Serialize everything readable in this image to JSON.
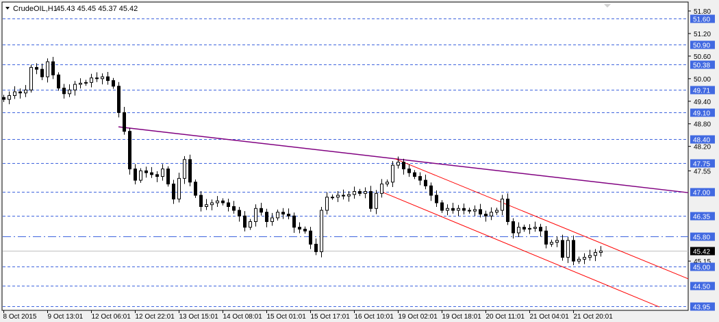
{
  "header": {
    "symbol": "CrudeOIL,H1",
    "ohlc_readout": "45.43 45.45 45.37 45.42"
  },
  "colors": {
    "background": "#ffffff",
    "level_line": "#3d63dd",
    "level_label_bg": "#4169e1",
    "trendline": "#800080",
    "channel": "#ff0000",
    "current_price_line": "#c0c0c0",
    "current_price_label_bg": "#000000"
  },
  "chart_data": {
    "type": "candlestick",
    "title": "CrudeOIL,H1",
    "ylim": [
      43.85,
      51.95
    ],
    "grid": false,
    "y_tick_labels": [
      "51.80",
      "51.20",
      "50.60",
      "50.00",
      "49.40",
      "48.80",
      "48.20",
      "47.55",
      "45.15"
    ],
    "x_tick_labels": [
      "8 Oct 2015",
      "9 Oct 13:01",
      "12 Oct 06:01",
      "12 Oct 22:01",
      "13 Oct 15:01",
      "14 Oct 08:01",
      "15 Oct 01:01",
      "15 Oct 17:01",
      "16 Oct 10:01",
      "19 Oct 02:01",
      "19 Oct 18:01",
      "20 Oct 11:01",
      "21 Oct 04:01",
      "21 Oct 20:01"
    ],
    "closes": [
      49.45,
      49.55,
      49.65,
      49.62,
      49.7,
      50.3,
      50.25,
      50.05,
      50.45,
      50.1,
      49.75,
      49.6,
      49.7,
      49.85,
      49.88,
      49.9,
      50.02,
      50.0,
      50.05,
      49.95,
      49.8,
      49.1,
      48.6,
      47.6,
      47.3,
      47.55,
      47.5,
      47.45,
      47.4,
      47.6,
      47.2,
      46.8,
      47.35,
      47.85,
      47.25,
      46.9,
      46.6,
      46.65,
      46.7,
      46.75,
      46.7,
      46.6,
      46.5,
      46.35,
      46.05,
      46.2,
      46.55,
      46.45,
      46.2,
      46.3,
      46.45,
      46.4,
      46.35,
      46.05,
      46.0,
      45.95,
      45.6,
      45.4,
      46.5,
      46.85,
      46.85,
      46.9,
      46.88,
      46.92,
      47.0,
      46.95,
      47.0,
      46.55,
      46.95,
      47.2,
      47.25,
      47.7,
      47.78,
      47.6,
      47.5,
      47.4,
      47.3,
      47.15,
      46.9,
      46.7,
      46.5,
      46.55,
      46.5,
      46.55,
      46.5,
      46.48,
      46.52,
      46.4,
      46.35,
      46.45,
      46.5,
      46.8,
      46.2,
      45.9,
      46.05,
      46.0,
      46.02,
      46.05,
      45.95,
      45.6,
      45.65,
      45.7,
      45.25,
      45.7,
      45.15,
      45.2,
      45.25,
      45.3,
      45.38,
      45.42
    ],
    "horizontal_levels": [
      {
        "price": "51.60",
        "style": "dashed"
      },
      {
        "price": "50.90",
        "style": "dashed"
      },
      {
        "price": "50.38",
        "style": "dashed"
      },
      {
        "price": "49.71",
        "style": "dashed"
      },
      {
        "price": "49.10",
        "style": "dashed"
      },
      {
        "price": "48.40",
        "style": "dashed"
      },
      {
        "price": "47.75",
        "style": "dashed"
      },
      {
        "price": "47.00",
        "style": "dashed"
      },
      {
        "price": "46.35",
        "style": "dashed"
      },
      {
        "price": "45.80",
        "style": "dash-dot"
      },
      {
        "price": "45.00",
        "style": "dashed"
      },
      {
        "price": "44.50",
        "style": "dashed"
      },
      {
        "price": "43.95",
        "style": "dashed"
      }
    ],
    "current_price": "45.42",
    "trendlines": [
      {
        "kind": "trendline",
        "color": "#800080",
        "from": [
          21,
          48.72
        ],
        "to": [
          125,
          46.97
        ]
      },
      {
        "kind": "channel-upper",
        "color": "#ff0000",
        "from": [
          71.5,
          47.87
        ],
        "to": [
          125,
          44.68
        ]
      },
      {
        "kind": "channel-lower",
        "color": "#ff0000",
        "from": [
          69.4,
          46.97
        ],
        "to": [
          119.75,
          43.93
        ]
      }
    ]
  }
}
